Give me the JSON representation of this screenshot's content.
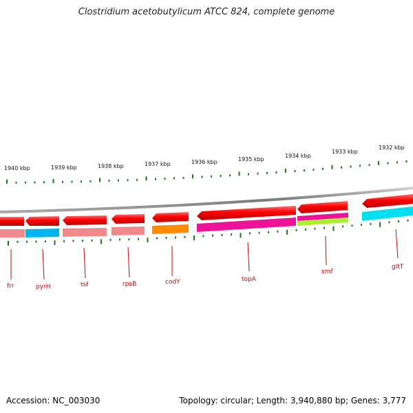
{
  "title": "Clostridium acetobutylicum ATCC 824, complete genome",
  "accession": "Accession: NC_003030",
  "summary": "Topology: circular; Length: 3,940,880 bp; Genes: 3,777",
  "colors": {
    "backbone": "#888888",
    "cds_arrow": "#ff0000",
    "tick": "#1a7a1a",
    "label": "#cc0000"
  },
  "kbp_ticks": [
    "1940 kbp",
    "1939 kbp",
    "1938 kbp",
    "1937 kbp",
    "1936 kbp",
    "1935 kbp",
    "1934 kbp",
    "1933 kbp",
    "1932 kbp"
  ],
  "genes": [
    {
      "name": "frr",
      "cog_color": "#f08a8a"
    },
    {
      "name": "pyrH",
      "cog_color": "#00b4f0"
    },
    {
      "name": "tsf",
      "cog_color": "#f08a8a"
    },
    {
      "name": "rpsB",
      "cog_color": "#f08a8a"
    },
    {
      "name": "codY",
      "cog_color": "#ff8c00"
    },
    {
      "name": "topA",
      "cog_color": "#ee1199"
    },
    {
      "name": "smf",
      "cog_color": "#ee1199"
    },
    {
      "name": "gltT",
      "cog_color": "#00e0f0"
    }
  ]
}
